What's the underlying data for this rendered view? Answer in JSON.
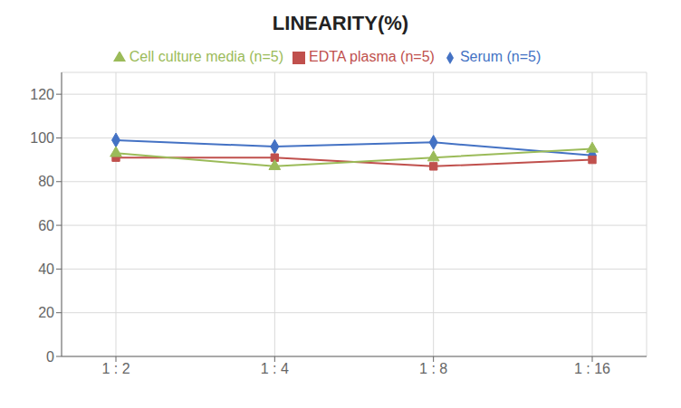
{
  "chart_data": {
    "type": "line",
    "title": "LINEARITY(%)",
    "categories": [
      "1 : 2",
      "1 : 4",
      "1 : 8",
      "1 : 16"
    ],
    "series": [
      {
        "name": "Serum (n=5)",
        "color": "#4472C4",
        "marker": "diamond",
        "values": [
          99,
          96,
          98,
          92
        ]
      },
      {
        "name": "EDTA plasma (n=5)",
        "color": "#C0504D",
        "marker": "square",
        "values": [
          91,
          91,
          87,
          90
        ]
      },
      {
        "name": "Cell culture media (n=5)",
        "color": "#9BBB59",
        "marker": "triangle",
        "values": [
          93,
          87,
          91,
          95
        ]
      }
    ],
    "ylim": [
      0,
      130
    ],
    "yticks": [
      0,
      20,
      40,
      60,
      80,
      100,
      120
    ],
    "grid": true,
    "legend": "top"
  }
}
